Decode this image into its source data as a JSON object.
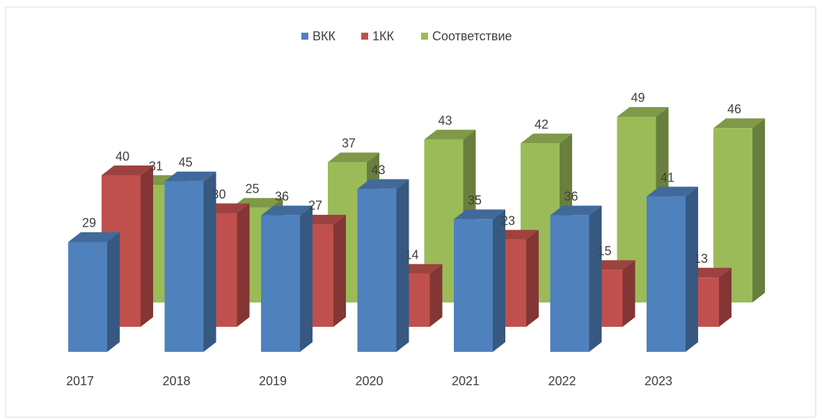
{
  "chart_data": {
    "type": "bar3d",
    "categories": [
      "2017",
      "2018",
      "2019",
      "2020",
      "2021",
      "2022",
      "2023"
    ],
    "series": [
      {
        "name": "ВКК",
        "color": "#4f81bd",
        "values": [
          29,
          45,
          36,
          43,
          35,
          36,
          41
        ]
      },
      {
        "name": "1КК",
        "color": "#c0504d",
        "values": [
          40,
          30,
          27,
          14,
          23,
          15,
          13
        ]
      },
      {
        "name": "Соответствие",
        "color": "#9bbb59",
        "values": [
          31,
          25,
          37,
          43,
          42,
          49,
          46
        ]
      }
    ],
    "legend": "top"
  }
}
